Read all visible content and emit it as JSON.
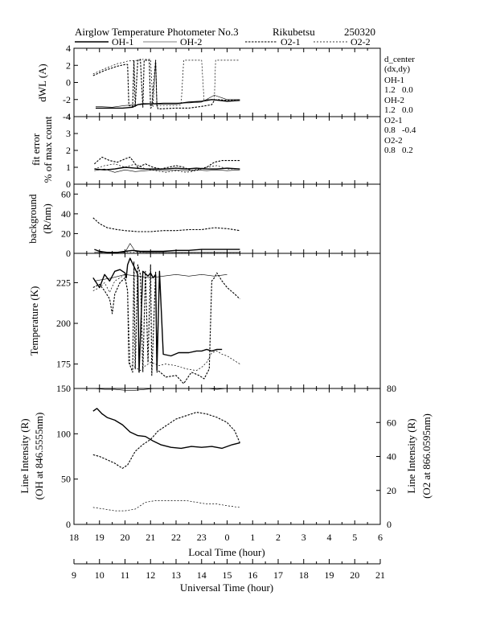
{
  "title": {
    "instrument": "Airglow Temperature Photometer No.3",
    "station": "Rikubetsu",
    "date": "250320"
  },
  "legend": [
    {
      "name": "OH-1",
      "style": "solid"
    },
    {
      "name": "OH-2",
      "style": "thin"
    },
    {
      "name": "O2-1",
      "style": "dashed"
    },
    {
      "name": "O2-2",
      "style": "dotted"
    }
  ],
  "side_info": {
    "header": "d_center",
    "subheader": "(dx,dy)",
    "entries": [
      {
        "name": "OH-1",
        "value": "1.2   0.0"
      },
      {
        "name": "OH-2",
        "value": "1.2   0.0"
      },
      {
        "name": "O2-1",
        "value": "0.8   -0.4"
      },
      {
        "name": "O2-2",
        "value": "0.8   0.2"
      }
    ]
  },
  "axes": {
    "local_time_label": "Local Time (hour)",
    "universal_time_label": "Universal Time (hour)",
    "local_time_ticks": [
      "18",
      "19",
      "20",
      "21",
      "22",
      "23",
      "0",
      "1",
      "2",
      "3",
      "4",
      "5",
      "6"
    ],
    "universal_time_ticks": [
      "9",
      "10",
      "11",
      "12",
      "13",
      "14",
      "15",
      "16",
      "17",
      "18",
      "19",
      "20",
      "21"
    ]
  },
  "chart_data": [
    {
      "type": "line",
      "panel": "dwl",
      "ylabel": "dWL (A)",
      "ylim": [
        -4,
        4
      ],
      "yticks": [
        "4",
        "2",
        "0",
        "-2",
        "-4"
      ],
      "xlim": [
        18,
        30
      ],
      "series": [
        {
          "name": "OH-1",
          "style": "solid",
          "x": [
            18.85,
            19.6,
            19.9,
            20.3,
            20.5,
            20.7,
            21.2,
            21.6,
            22.0,
            22.5,
            23.0,
            23.4,
            23.7,
            24.0,
            24.5
          ],
          "y": [
            -3.0,
            -3.0,
            -3.0,
            -2.9,
            -2.6,
            -2.5,
            -2.5,
            -2.5,
            -2.5,
            -2.3,
            -2.2,
            -2.0,
            -2.1,
            -2.2,
            -2.1
          ]
        },
        {
          "name": "OH-2",
          "style": "thin",
          "x": [
            18.85,
            19.5,
            20.0,
            20.6,
            21.0,
            21.5,
            22.0,
            22.5,
            23.0,
            23.5,
            24.0,
            24.5
          ],
          "y": [
            -2.8,
            -2.9,
            -2.7,
            -2.6,
            -2.5,
            -2.4,
            -2.4,
            -2.4,
            -2.3,
            -1.5,
            -2.0,
            -2.0
          ]
        },
        {
          "name": "O2-1",
          "style": "dashed",
          "x": [
            18.75,
            19.2,
            19.7,
            20.0,
            20.1,
            20.15,
            20.3,
            20.35,
            20.4,
            20.5,
            20.6,
            20.7,
            20.75,
            20.95,
            21.0,
            21.05,
            21.2,
            21.25,
            21.3,
            22.0,
            22.5,
            23.0,
            23.4,
            23.5,
            23.6,
            24.0,
            24.5
          ],
          "y": [
            0.8,
            1.4,
            1.9,
            2.1,
            2.1,
            -2.7,
            -2.8,
            2.6,
            -2.8,
            2.6,
            2.7,
            -2.9,
            2.6,
            2.6,
            -3.0,
            -2.9,
            2.6,
            -2.8,
            -3.1,
            -3.0,
            -3.0,
            -2.8,
            -2.6,
            -2.1,
            -2.0,
            -2.1,
            -2.1
          ]
        },
        {
          "name": "O2-2",
          "style": "dotted",
          "x": [
            18.75,
            19.2,
            19.7,
            20.0,
            20.1,
            20.6,
            20.7,
            21.0,
            21.1,
            21.2,
            21.25,
            21.3,
            22.0,
            22.2,
            22.3,
            23.0,
            23.1,
            23.2,
            23.5,
            23.55,
            24.0,
            24.5
          ],
          "y": [
            1.0,
            1.6,
            2.2,
            2.4,
            2.5,
            2.6,
            2.7,
            2.7,
            -2.8,
            2.6,
            -2.8,
            -2.7,
            -2.7,
            -2.6,
            2.6,
            2.6,
            -2.2,
            -2.0,
            -2.0,
            2.6,
            2.6,
            2.6
          ]
        }
      ]
    },
    {
      "type": "line",
      "panel": "fit_error",
      "ylabel": "fit error",
      "ylabel2": "% of max count",
      "ylim": [
        0,
        4
      ],
      "yticks": [
        "4",
        "3",
        "2",
        "1",
        "0"
      ],
      "xlim": [
        18,
        30
      ],
      "series": [
        {
          "name": "OH-1",
          "style": "solid",
          "x": [
            18.8,
            19.2,
            19.6,
            20.0,
            20.4,
            20.8,
            21.2,
            21.6,
            22.0,
            22.4,
            22.8,
            23.2,
            23.6,
            24.0,
            24.5
          ],
          "y": [
            0.9,
            0.85,
            0.9,
            1.0,
            0.95,
            0.9,
            0.9,
            0.9,
            0.95,
            0.9,
            0.95,
            0.9,
            0.9,
            0.95,
            0.9
          ]
        },
        {
          "name": "OH-2",
          "style": "thin",
          "x": [
            18.8,
            19.2,
            19.6,
            20.0,
            20.4,
            20.8,
            21.2,
            21.6,
            22.0,
            22.4,
            22.8,
            23.2,
            23.6,
            24.0,
            24.5
          ],
          "y": [
            0.8,
            0.9,
            0.7,
            0.85,
            0.75,
            0.8,
            0.85,
            0.8,
            0.85,
            0.8,
            0.85,
            0.8,
            0.85,
            0.8,
            0.85
          ]
        },
        {
          "name": "O2-1",
          "style": "dashed",
          "x": [
            18.8,
            19.1,
            19.4,
            19.7,
            20.0,
            20.2,
            20.5,
            20.8,
            21.1,
            21.4,
            21.7,
            22.0,
            22.3,
            22.6,
            22.9,
            23.2,
            23.5,
            23.8,
            24.1,
            24.5
          ],
          "y": [
            1.2,
            1.6,
            1.4,
            1.3,
            1.5,
            1.6,
            1.0,
            1.2,
            1.0,
            0.9,
            1.0,
            1.1,
            1.0,
            0.8,
            0.9,
            1.0,
            1.3,
            1.4,
            1.4,
            1.4
          ]
        },
        {
          "name": "O2-2",
          "style": "dotted",
          "x": [
            18.8,
            19.2,
            19.6,
            20.0,
            20.4,
            20.8,
            21.2,
            21.6,
            22.0,
            22.4,
            22.8,
            23.2,
            23.6,
            24.0,
            24.5
          ],
          "y": [
            0.9,
            1.1,
            1.2,
            1.0,
            1.2,
            0.9,
            0.8,
            0.7,
            0.8,
            0.7,
            0.8,
            1.0,
            1.1,
            0.9,
            0.9
          ]
        }
      ]
    },
    {
      "type": "line",
      "panel": "background",
      "ylabel": "background",
      "ylabel2": "(R/nm)",
      "ylim": [
        0,
        70
      ],
      "yticks": [
        "60",
        "40",
        "20",
        "0"
      ],
      "xlim": [
        18,
        30
      ],
      "series": [
        {
          "name": "OH-1",
          "style": "solid",
          "x": [
            18.8,
            19.0,
            19.3,
            19.7,
            20.0,
            20.3,
            20.6,
            21.0,
            21.5,
            22.0,
            22.5,
            23.0,
            23.5,
            24.0,
            24.5
          ],
          "y": [
            4,
            2,
            1,
            1,
            2,
            3,
            2,
            2,
            2,
            3,
            3,
            4,
            4,
            4,
            4
          ]
        },
        {
          "name": "OH-2",
          "style": "thin",
          "x": [
            18.8,
            19.2,
            19.6,
            20.0,
            20.2,
            20.4,
            20.8,
            21.2,
            21.6,
            22.0,
            22.5,
            23.0,
            23.5,
            24.0,
            24.5
          ],
          "y": [
            1,
            1,
            1,
            1,
            10,
            2,
            1,
            1,
            1,
            1,
            1,
            1,
            1,
            1,
            1
          ]
        },
        {
          "name": "O2-1",
          "style": "dashed",
          "x": [
            18.75,
            19.0,
            19.3,
            19.7,
            20.0,
            20.5,
            21.0,
            21.5,
            22.0,
            22.5,
            23.0,
            23.5,
            24.0,
            24.5
          ],
          "y": [
            36,
            30,
            26,
            24,
            23,
            22,
            22,
            23,
            23,
            24,
            24,
            26,
            25,
            23
          ]
        },
        {
          "name": "O2-2",
          "style": "dotted",
          "x": [
            18.8,
            19.2,
            19.6,
            20.0,
            20.5,
            21.0,
            21.5,
            22.0,
            22.5,
            23.0,
            23.5,
            24.0,
            24.5
          ],
          "y": [
            1,
            1,
            1,
            1,
            1,
            1,
            1,
            1,
            1,
            1,
            1,
            1,
            1
          ]
        }
      ]
    },
    {
      "type": "line",
      "panel": "temperature",
      "ylabel": "Temperature (K)",
      "ylim": [
        160,
        243
      ],
      "yticks": [
        "225",
        "200",
        "175"
      ],
      "xlim": [
        18,
        30
      ],
      "series": [
        {
          "name": "OH-1",
          "style": "solid",
          "x": [
            18.75,
            19.0,
            19.2,
            19.4,
            19.6,
            19.8,
            20.0,
            20.05,
            20.1,
            20.2,
            20.5,
            20.55,
            20.7,
            20.9,
            21.0,
            21.1,
            21.2,
            21.25,
            21.35,
            21.5,
            21.8,
            22.1,
            22.5,
            22.8,
            23.0,
            23.2,
            23.4,
            23.6,
            23.8
          ],
          "y": [
            228,
            222,
            230,
            226,
            232,
            233,
            231,
            228,
            236,
            240,
            230,
            170,
            232,
            229,
            231,
            228,
            230,
            171,
            232,
            181,
            180,
            182,
            182,
            183,
            183,
            184,
            183,
            184,
            184
          ]
        },
        {
          "name": "OH-2",
          "style": "thin",
          "x": [
            18.8,
            19.5,
            20.0,
            20.5,
            21.0,
            21.5,
            22.0,
            22.5,
            23.0,
            23.5,
            24.0
          ],
          "y": [
            226,
            228,
            230,
            229,
            228,
            229,
            230,
            229,
            230,
            229,
            230
          ]
        },
        {
          "name": "O2-1",
          "style": "dashed",
          "x": [
            18.75,
            19.0,
            19.2,
            19.4,
            19.5,
            19.6,
            19.8,
            20.0,
            20.1,
            20.15,
            20.3,
            20.35,
            20.4,
            20.5,
            20.6,
            20.7,
            20.8,
            20.9,
            21.0,
            21.05,
            21.2,
            21.25,
            21.3,
            21.6,
            22.0,
            22.3,
            22.6,
            22.9,
            23.1,
            23.3,
            23.4,
            23.5,
            23.6,
            23.8,
            24.0,
            24.3,
            24.5
          ],
          "y": [
            222,
            224,
            220,
            215,
            206,
            218,
            225,
            228,
            220,
            176,
            170,
            238,
            172,
            236,
            230,
            170,
            232,
            176,
            236,
            168,
            232,
            170,
            171,
            167,
            168,
            163,
            170,
            168,
            166,
            172,
            226,
            228,
            231,
            226,
            222,
            218,
            215
          ]
        },
        {
          "name": "O2-2",
          "style": "dotted",
          "x": [
            18.75,
            19.0,
            19.2,
            19.4,
            19.6,
            19.8,
            20.0,
            20.1,
            20.2,
            20.4,
            20.6,
            20.8,
            21.0,
            21.2,
            21.3,
            21.6,
            22.0,
            22.4,
            22.8,
            23.0,
            23.2,
            23.4,
            23.6,
            23.8,
            24.0,
            24.2,
            24.5
          ],
          "y": [
            220,
            222,
            225,
            219,
            226,
            228,
            230,
            220,
            175,
            173,
            171,
            174,
            176,
            175,
            174,
            175,
            174,
            172,
            171,
            173,
            176,
            182,
            183,
            181,
            180,
            178,
            175
          ]
        }
      ]
    },
    {
      "type": "line",
      "panel": "line_intensity",
      "ylabel": "Line Intensity (R)",
      "ylabel2": "(OH at 846.5555nm)",
      "y2label": "Line Intensity (R)",
      "y2label2": "(O2 at 866.0595nm)",
      "ylim": [
        0,
        150
      ],
      "y2lim": [
        0,
        80
      ],
      "yticks": [
        "150",
        "100",
        "50",
        "0"
      ],
      "y2ticks": [
        "80",
        "60",
        "40",
        "20",
        "0"
      ],
      "xlim": [
        18,
        30
      ],
      "series": [
        {
          "name": "OH-1",
          "style": "solid",
          "axis": "left",
          "x": [
            18.75,
            18.9,
            19.1,
            19.3,
            19.6,
            19.9,
            20.2,
            20.5,
            20.8,
            21.1,
            21.4,
            21.8,
            22.2,
            22.6,
            23.0,
            23.4,
            23.8,
            24.2,
            24.5
          ],
          "y": [
            125,
            128,
            122,
            118,
            115,
            110,
            102,
            98,
            97,
            92,
            88,
            85,
            84,
            86,
            85,
            86,
            84,
            88,
            90
          ]
        },
        {
          "name": "OH-2",
          "style": "thin",
          "axis": "left",
          "x": [
            18.75,
            19.2,
            19.6,
            20.0,
            20.4,
            20.8,
            21.2,
            21.6,
            22.0,
            22.4,
            22.8,
            23.2,
            23.6,
            24.0,
            24.5
          ],
          "y": [
            150,
            149,
            149,
            148,
            148,
            149,
            150,
            150,
            150,
            150,
            150,
            150,
            149,
            150,
            150
          ]
        },
        {
          "name": "O2-1",
          "style": "dashed",
          "axis": "right",
          "x": [
            18.75,
            19.0,
            19.3,
            19.6,
            19.9,
            20.1,
            20.4,
            20.7,
            21.0,
            21.3,
            21.6,
            22.0,
            22.4,
            22.8,
            23.2,
            23.6,
            24.0,
            24.3,
            24.5
          ],
          "y": [
            41,
            40,
            38,
            36,
            33,
            35,
            43,
            47,
            50,
            55,
            58,
            62,
            64,
            66,
            65,
            63,
            60,
            55,
            48
          ]
        },
        {
          "name": "O2-2",
          "style": "dotted",
          "axis": "right",
          "x": [
            18.75,
            19.2,
            19.6,
            20.0,
            20.4,
            20.8,
            21.2,
            21.6,
            22.0,
            22.4,
            22.8,
            23.2,
            23.6,
            24.0,
            24.5
          ],
          "y": [
            10,
            9,
            8,
            8,
            9,
            13,
            14,
            14,
            14,
            14,
            13,
            12,
            12,
            11,
            10
          ]
        }
      ]
    }
  ]
}
